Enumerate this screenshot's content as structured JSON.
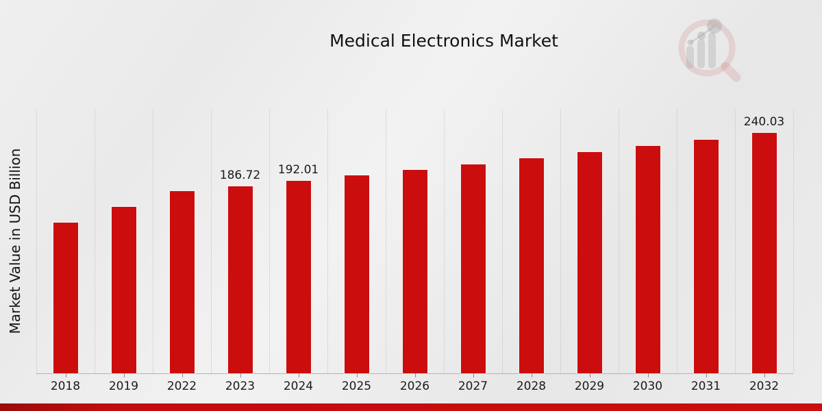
{
  "header": {
    "title": "Medical Electronics Market"
  },
  "branding": {
    "logo": "market-research-future-watermark"
  },
  "colors": {
    "bar": "#cc0d0d",
    "bottom_band": "#c30c0c",
    "background": "#ebebeb",
    "gridline": "#c5c5c5",
    "text": "#1a1a1a"
  },
  "chart_data": {
    "type": "bar",
    "title": "Medical Electronics Market",
    "xlabel": "",
    "ylabel": "Market Value in USD Billion",
    "categories": [
      "2018",
      "2019",
      "2022",
      "2023",
      "2024",
      "2025",
      "2026",
      "2027",
      "2028",
      "2029",
      "2030",
      "2031",
      "2032"
    ],
    "values": [
      150.4,
      166.5,
      181.6,
      186.72,
      192.01,
      197.4,
      203.0,
      208.8,
      214.7,
      220.8,
      227.0,
      233.4,
      240.03
    ],
    "data_labels": [
      null,
      null,
      null,
      "186.72",
      "192.01",
      null,
      null,
      null,
      null,
      null,
      null,
      null,
      "240.03"
    ],
    "ylim": [
      0,
      263.3
    ],
    "grid": "vertical-dotted",
    "legend_position": "none",
    "bar_color": "#cc0d0d"
  }
}
